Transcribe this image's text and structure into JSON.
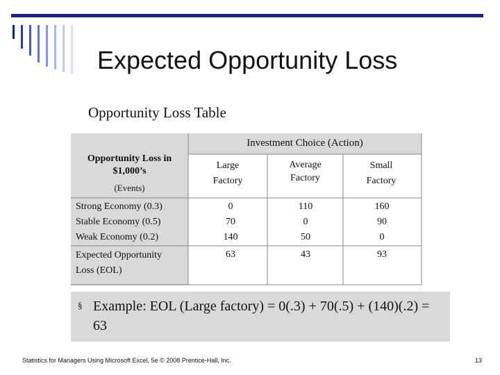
{
  "slide": {
    "title": "Expected Opportunity Loss",
    "subtitle": "Opportunity Loss Table",
    "page_number": "13",
    "footer": "Statistics for Managers Using Microsoft Excel, 5e © 2008 Prentice-Hall, Inc."
  },
  "colors": {
    "accent": "#1a237e",
    "table_gray": "#d9d9d9",
    "bar_colors": [
      "#1a237e",
      "#2d3a9a",
      "#4a57b3",
      "#6a76c8",
      "#8a94d8",
      "#aab2e3",
      "#c5cbeb",
      "#dde0f2"
    ]
  },
  "table": {
    "header_group": "Investment Choice (Action)",
    "corner_label": "Opportunity Loss in\n$1,000’s",
    "corner_sub": "(Events)",
    "actions": [
      {
        "label": "Large\nFactory"
      },
      {
        "label": "Average\nFactory"
      },
      {
        "label": "Small\nFactory"
      }
    ],
    "events_text": "Strong Economy (0.3)\nStable Economy (0.5)\nWeak Economy (0.2)",
    "losses_text": [
      "0\n70\n140",
      "110\n0\n50",
      "160\n90\n0"
    ],
    "eol_label": "Expected Opportunity\nLoss (EOL)",
    "eol_values": [
      "63",
      "43",
      "93"
    ]
  },
  "example": {
    "bullet": "§",
    "text": "Example:  EOL (Large factory) = 0(.3) + 70(.5) + (140)(.2)  = 63"
  }
}
